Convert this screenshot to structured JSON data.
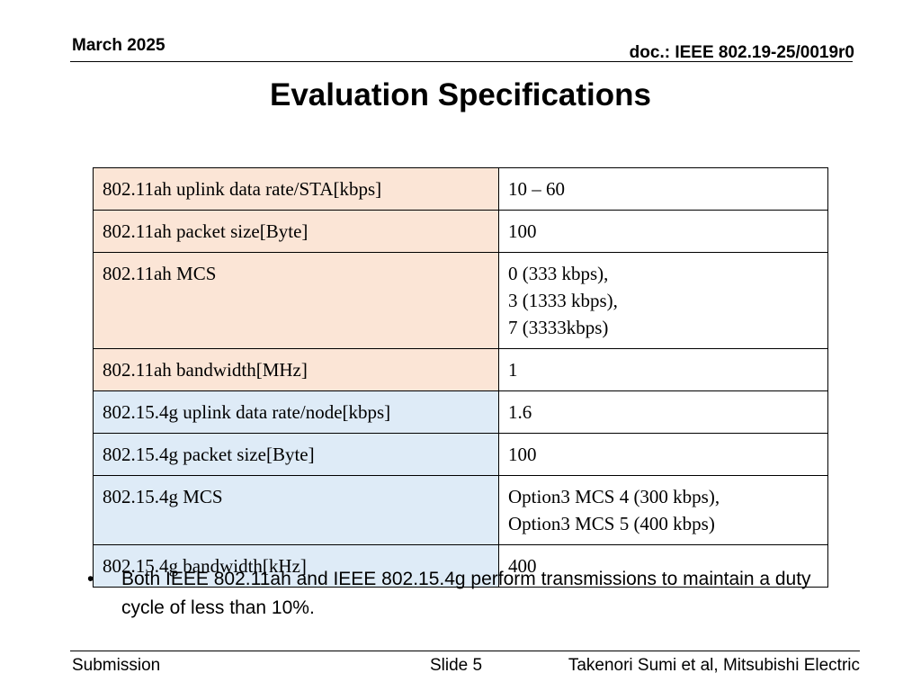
{
  "header": {
    "date": "March 2025",
    "doc": "doc.: IEEE 802.19-25/0019r0"
  },
  "title": "Evaluation Specifications",
  "table": {
    "rows": [
      {
        "group": "ah",
        "label": "802.11ah uplink data rate/STA[kbps]",
        "value_lines": [
          "10 – 60"
        ]
      },
      {
        "group": "ah",
        "label": "802.11ah packet size[Byte]",
        "value_lines": [
          "100"
        ]
      },
      {
        "group": "ah",
        "label": "802.11ah MCS",
        "value_lines": [
          "0 (333 kbps),",
          "3 (1333 kbps),",
          "7 (3333kbps)"
        ]
      },
      {
        "group": "ah",
        "label": "802.11ah bandwidth[MHz]",
        "value_lines": [
          "1"
        ]
      },
      {
        "group": "g",
        "label": "802.15.4g uplink data rate/node[kbps]",
        "value_lines": [
          "1.6"
        ]
      },
      {
        "group": "g",
        "label": "802.15.4g packet size[Byte]",
        "value_lines": [
          "100"
        ]
      },
      {
        "group": "g",
        "label": "802.15.4g MCS",
        "value_lines": [
          "Option3 MCS 4 (300 kbps),",
          "Option3 MCS 5 (400 kbps)"
        ]
      },
      {
        "group": "g",
        "label": "802.15.4g bandwidth[kHz]",
        "value_lines": [
          "400"
        ]
      }
    ]
  },
  "bullets": [
    {
      "marker": "•",
      "text": "Both IEEE 802.11ah and IEEE 802.15.4g perform transmissions to maintain a duty cycle of less than 10%."
    }
  ],
  "footer": {
    "left": "Submission",
    "center": "Slide 5",
    "right": "Takenori Sumi et al, Mitsubishi Electric"
  },
  "colors": {
    "ah_label_bg": "#fbe5d6",
    "g_label_bg": "#deebf7"
  }
}
